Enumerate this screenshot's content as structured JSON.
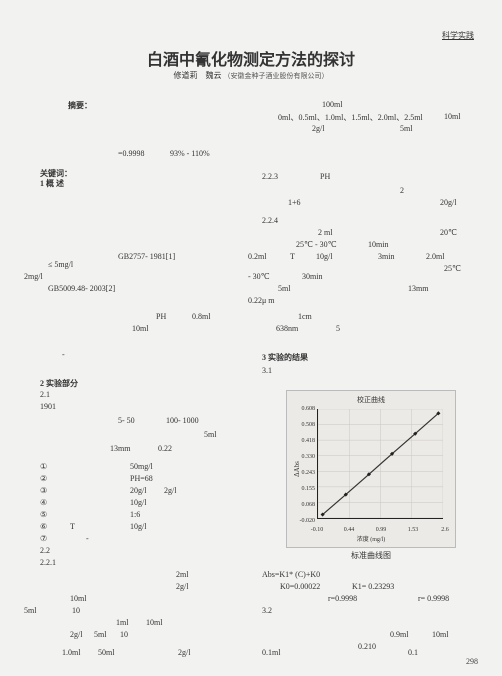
{
  "header_link": "科学实践",
  "title": "白酒中氰化物测定方法的探讨",
  "authors": "修道莉　魏云",
  "affil": "（安徽金种子酒业股份有限公司）",
  "left": {
    "abstract_label": "摘要：",
    "r": "=0.9998",
    "pct": "93% - 110%",
    "kw_label": "关键词：",
    "sec1": "1  概 述",
    "limit": "≤ 5mg/l",
    "v2mgl": "2mg/l",
    "gb1": "GB2757- 1981[1]",
    "gb2": "GB5009.48- 2003[2]",
    "ph": "PH",
    "v08": "0.8ml",
    "v10ml": "10ml",
    "dash": "-",
    "sec2": "2  实验部分",
    "s21": "2.1",
    "y1901": "1901",
    "r550": "5- 50",
    "r1001000": "100- 1000",
    "v5ml": "5ml",
    "mm13": "13mm",
    "o022": "0.22",
    "li1": "①",
    "li1v": "50mg/l",
    "li2": "②",
    "li2v": "PH=68",
    "li3": "③",
    "li3v": "20g/l",
    "li3v2": "2g/l",
    "li4": "④",
    "li4v": "10g/l",
    "li5": "⑤",
    "li5v": "1:6",
    "li6": "⑥",
    "li6t": "T",
    "li6v": "10g/l",
    "li7": "⑦",
    "li7d": "-",
    "s22": "2.2",
    "s221": "2.2.1",
    "v2ml": "2ml",
    "v2gl": "2g/l",
    "b10ml": "10ml",
    "b5ml": "5ml",
    "b10": "10",
    "b1ml": "1ml",
    "bb10ml": "10ml",
    "bb10": "10",
    "c2gl": "2g/l",
    "c5ml": "5ml",
    "d10ml": "1.0ml",
    "d50ml": "50ml",
    "d2gl": "2g/l"
  },
  "right": {
    "v100ml": "100ml",
    "series": "0ml、0.5ml、1.0ml、1.5ml、2.0ml、2.5ml",
    "v10ml": "10ml",
    "v2gl": "2g/l",
    "v5ml": "5ml",
    "s223": "2.2.3",
    "s223t": "PH",
    "n2": "2",
    "r16": "1+6",
    "v20gl": "20g/l",
    "s224": "2.2.4",
    "t2ml": "2 ml",
    "t20c": "20℃",
    "trange": "25℃ - 30℃",
    "t10min": "10min",
    "v02ml": "0.2ml",
    "tT": "T",
    "t10gl": "10g/l",
    "t3min": "3min",
    "t20ml": "2.0ml",
    "tn30": "- 30℃",
    "t30min": "30min",
    "t25c": "25℃",
    "b5ml": "5ml",
    "b13mm": "13mm",
    "um022": "0.22μ m",
    "cm1": "1cm",
    "nm638": "638nm",
    "n5": "5",
    "sec3": "3  实验的结果",
    "s31": "3.1",
    "eq": "Abs=K1* (C)+K0",
    "k0": "K0=0.00022",
    "k1": "K1= 0.23293",
    "rcoef": "r=0.9998",
    "rcoef2": "r= 0.9998",
    "s32": "3.2",
    "e09": "0.9ml",
    "e10ml": "10ml",
    "e0210": "0.210",
    "e01ml": "0.1ml",
    "e01": "0.1"
  },
  "chart": {
    "title": "校正曲线",
    "xlabel": "浓度 (mg/l)",
    "ylabel": "ΔAbs",
    "caption": "标准曲线图",
    "yticks": [
      "-0.020",
      "0.068",
      "0.155",
      "0.243",
      "0.330",
      "0.418",
      "0.508",
      "0.608"
    ],
    "xticks": [
      "-0.10",
      "0.44",
      "0.99",
      "1.53",
      "2.6"
    ],
    "points_x": [
      0.0,
      0.5,
      1.0,
      1.5,
      2.0,
      2.5
    ],
    "points_y": [
      0.0,
      0.115,
      0.232,
      0.35,
      0.466,
      0.583
    ],
    "xlim": [
      -0.1,
      2.6
    ],
    "ylim": [
      -0.02,
      0.608
    ],
    "line_color": "#333333",
    "marker_color": "#222222"
  },
  "page_num": "298"
}
